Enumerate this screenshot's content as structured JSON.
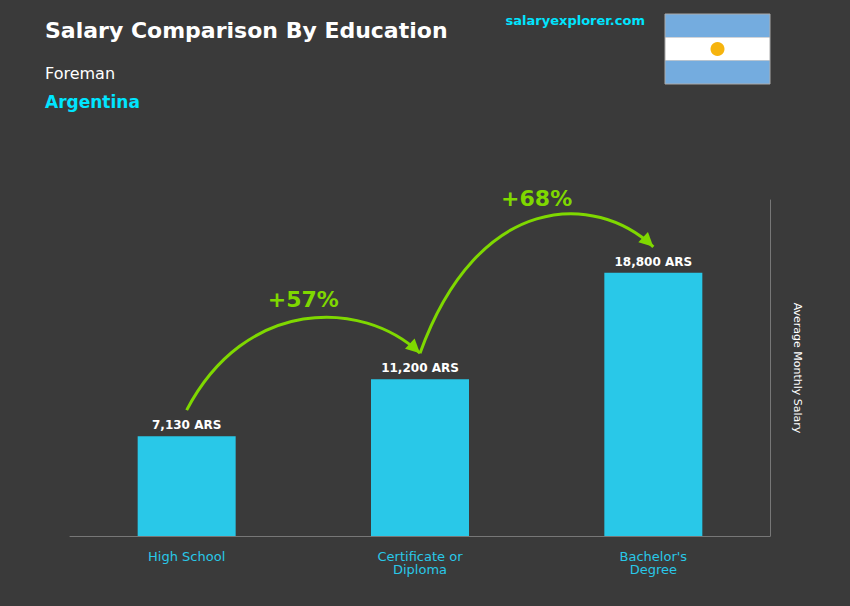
{
  "chart_data": {
    "type": "bar",
    "title": "Salary Comparison By Education",
    "subtitle": [
      "Foreman",
      "Argentina"
    ],
    "ylabel": "Average Monthly Salary",
    "categories": [
      "High School",
      "Certificate or\nDiploma",
      "Bachelor's\nDegree"
    ],
    "values": [
      7130,
      11200,
      18800
    ],
    "value_labels": [
      "7,130 ARS",
      "11,200 ARS",
      "18,800 ARS"
    ],
    "data_labels": true,
    "color": "#29C8E8",
    "annotations": [
      "+57%",
      "+68%",
      "salaryexplorer.com"
    ],
    "ylim": [
      0,
      24000
    ],
    "tick_labels": "x",
    "grid": false
  }
}
